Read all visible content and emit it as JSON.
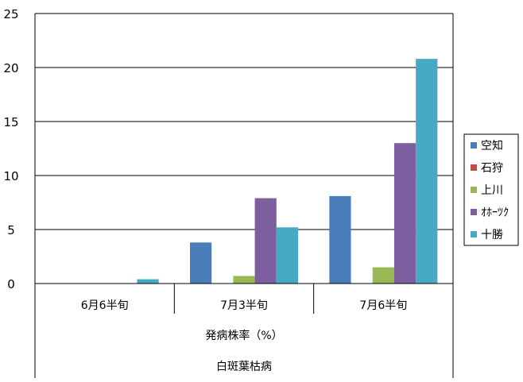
{
  "chart_data": {
    "type": "bar",
    "categories": [
      "6月6半旬",
      "7月3半旬",
      "7月6半旬"
    ],
    "series": [
      {
        "name": "空知",
        "color": "#4a7ebb",
        "values": [
          0,
          3.8,
          8.1
        ]
      },
      {
        "name": "石狩",
        "color": "#be4b48",
        "values": [
          0,
          0,
          0
        ]
      },
      {
        "name": "上川",
        "color": "#98b954",
        "values": [
          0,
          0.7,
          1.5
        ]
      },
      {
        "name": "ｵﾎｰﾂｸ",
        "color": "#7d5fa0",
        "values": [
          0,
          7.9,
          13.0
        ]
      },
      {
        "name": "十勝",
        "color": "#46aac5",
        "values": [
          0.4,
          5.2,
          20.8
        ]
      }
    ],
    "group_labels": [
      "発病株率（%）",
      "白斑葉枯病"
    ],
    "ylim": [
      0,
      25
    ],
    "yticks": [
      0,
      5,
      10,
      15,
      20,
      25
    ],
    "grid": true,
    "legend": "right"
  }
}
